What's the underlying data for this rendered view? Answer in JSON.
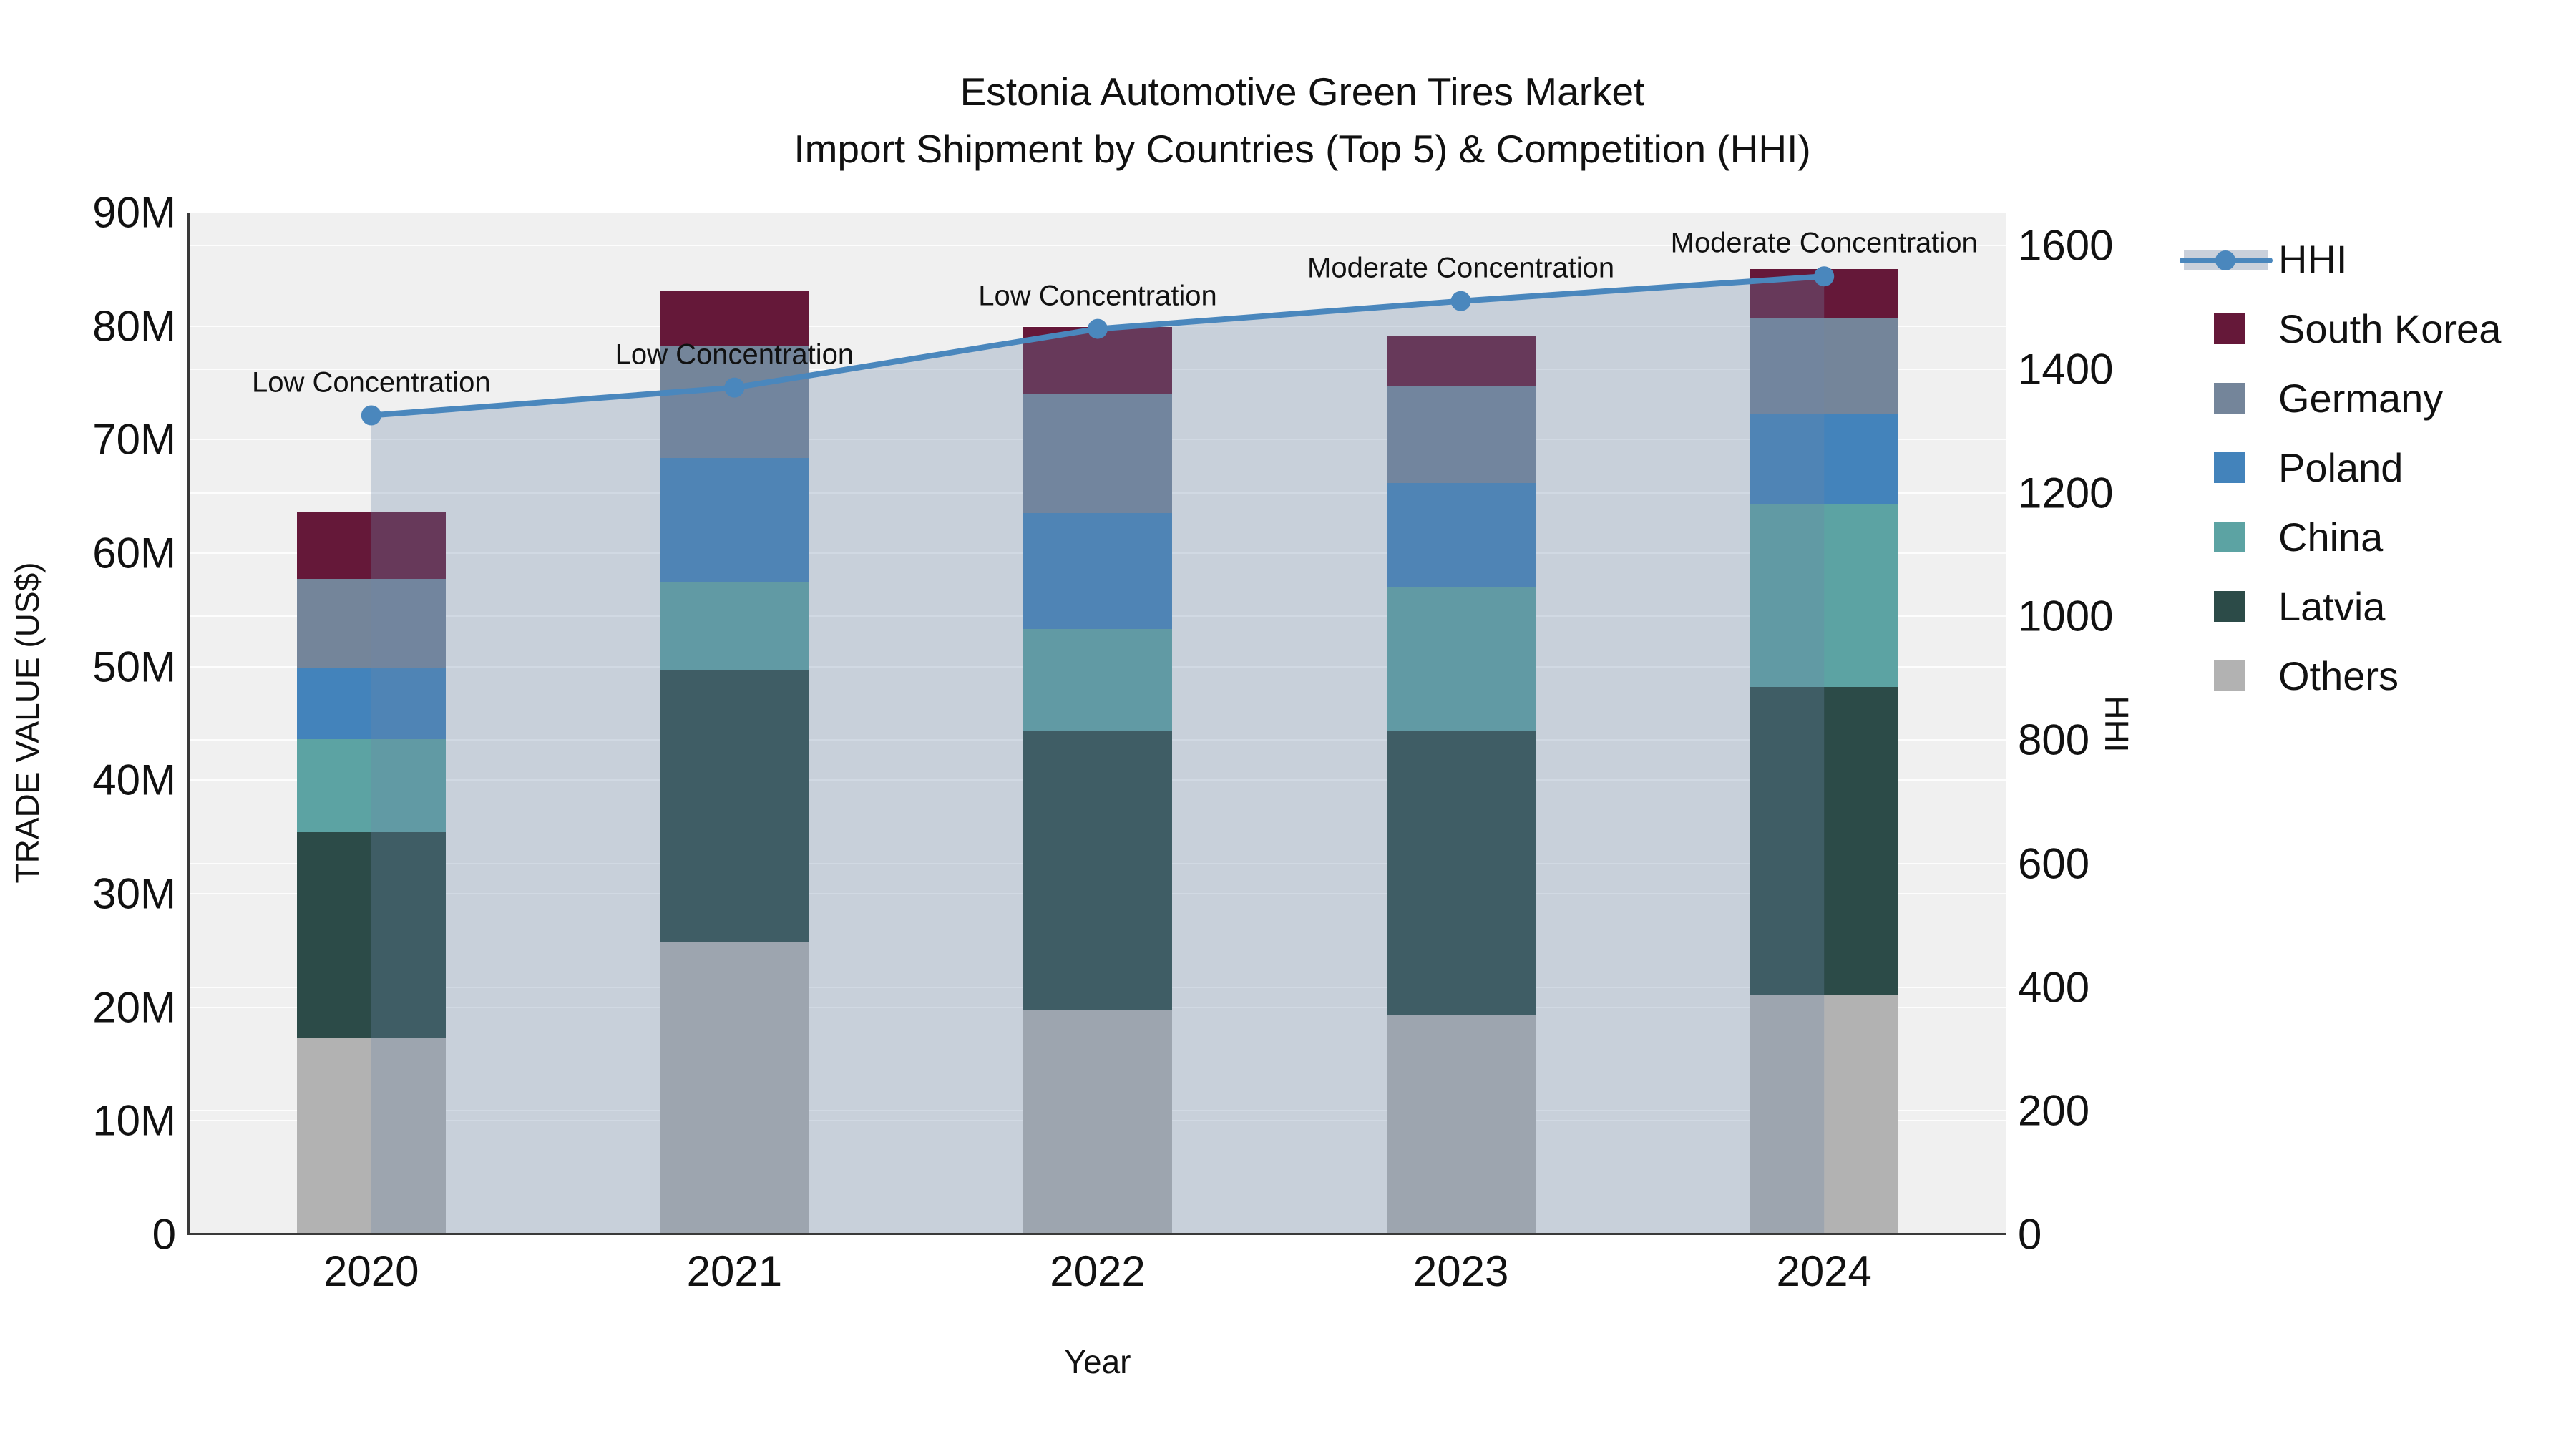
{
  "chart_data": {
    "type": "bar",
    "subtype": "stacked-bars-with-hhi-line-and-area-fill",
    "title": "Estonia Automotive Green Tires Market",
    "subtitle": "Import Shipment by Countries (Top 5) & Competition (HHI)",
    "xlabel": "Year",
    "ylabel_left": "TRADE VALUE (US$)",
    "ylabel_right": "HHI",
    "categories": [
      "2020",
      "2021",
      "2022",
      "2023",
      "2024"
    ],
    "unit": "million US$",
    "stack_order": "bottom to top as listed",
    "series": [
      {
        "name": "Others",
        "color": "#b2b2b2",
        "values": [
          17.3,
          25.8,
          19.8,
          19.3,
          21.1
        ]
      },
      {
        "name": "Latvia",
        "color": "#2c4b48",
        "values": [
          18.1,
          23.9,
          24.6,
          25.0,
          27.1
        ]
      },
      {
        "name": "China",
        "color": "#5ca3a3",
        "values": [
          8.2,
          7.8,
          8.9,
          12.7,
          16.1
        ]
      },
      {
        "name": "Poland",
        "color": "#4383bb",
        "values": [
          6.3,
          10.9,
          10.2,
          9.2,
          8.0
        ]
      },
      {
        "name": "Germany",
        "color": "#74859a",
        "values": [
          7.8,
          9.8,
          10.5,
          8.5,
          8.4
        ]
      },
      {
        "name": "South Korea",
        "color": "#651839",
        "values": [
          5.9,
          4.9,
          5.9,
          4.4,
          4.3
        ]
      }
    ],
    "bar_totals_musd": [
      63.6,
      83.1,
      79.9,
      79.1,
      85.0
    ],
    "line_series": {
      "name": "HHI",
      "color": "#4a87bd",
      "area_fill": "rgba(110,135,170,0.30)",
      "values": [
        1325,
        1370,
        1465,
        1510,
        1550
      ]
    },
    "annotations": [
      {
        "category": "2020",
        "text": "Low Concentration"
      },
      {
        "category": "2021",
        "text": "Low Concentration"
      },
      {
        "category": "2022",
        "text": "Low Concentration"
      },
      {
        "category": "2023",
        "text": "Moderate Concentration"
      },
      {
        "category": "2024",
        "text": "Moderate Concentration"
      }
    ],
    "ylim_left_musd": [
      0,
      90
    ],
    "ytick_labels_left": [
      "0",
      "10M",
      "20M",
      "30M",
      "40M",
      "50M",
      "60M",
      "70M",
      "80M",
      "90M"
    ],
    "ylim_right": [
      0,
      1600
    ],
    "ytick_labels_right": [
      "0",
      "200",
      "400",
      "600",
      "800",
      "1000",
      "1200",
      "1400",
      "1600"
    ],
    "grid": true,
    "legend_position": "right",
    "legend_order": [
      "HHI",
      "South Korea",
      "Germany",
      "Poland",
      "China",
      "Latvia",
      "Others"
    ],
    "colors": {
      "plot_background": "#f0f0f0",
      "figure_background": "#ffffff",
      "gridline": "#ffffff",
      "axis_spine": "#3a3a3a",
      "text": "#111111",
      "legend_band": "#c9d0db"
    }
  }
}
